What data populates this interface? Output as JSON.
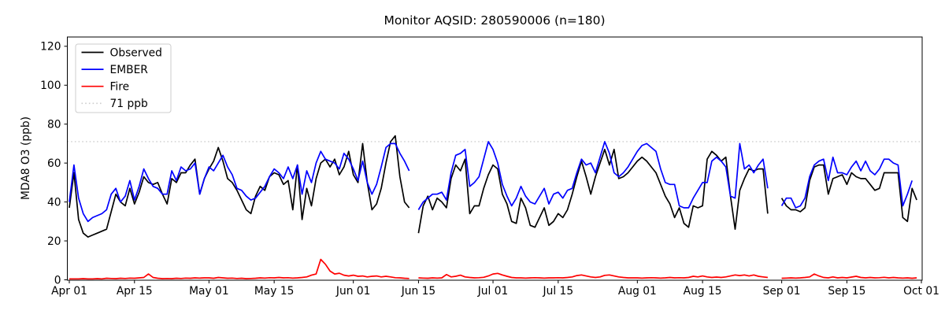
{
  "chart_data": {
    "type": "line",
    "title": "Monitor AQSID: 280590006 (n=180)",
    "xlabel": "",
    "ylabel": "MDA8 O3 (ppb)",
    "y_ticks": [
      0,
      20,
      40,
      60,
      80,
      100,
      120
    ],
    "ylim": [
      0,
      125
    ],
    "grid": false,
    "legend_position": "upper-left",
    "x_ticks": [
      {
        "label": "Apr 01",
        "day": 0
      },
      {
        "label": "Apr 15",
        "day": 14
      },
      {
        "label": "May 01",
        "day": 30
      },
      {
        "label": "May 15",
        "day": 44
      },
      {
        "label": "Jun 01",
        "day": 61
      },
      {
        "label": "Jun 15",
        "day": 75
      },
      {
        "label": "Jul 01",
        "day": 91
      },
      {
        "label": "Jul 15",
        "day": 105
      },
      {
        "label": "Aug 01",
        "day": 122
      },
      {
        "label": "Aug 15",
        "day": 136
      },
      {
        "label": "Sep 01",
        "day": 153
      },
      {
        "label": "Sep 15",
        "day": 167
      },
      {
        "label": "Oct 01",
        "day": 183
      }
    ],
    "threshold": {
      "value": 71,
      "label": "71 ppb",
      "color": "#cdcdcd",
      "style": "dotted"
    },
    "series": [
      {
        "name": "Observed",
        "color": "#000000",
        "values": [
          37,
          55,
          31,
          24,
          22,
          23,
          24,
          25,
          26,
          35,
          44,
          40,
          38,
          47,
          39,
          45,
          53,
          50,
          49,
          50,
          44,
          39,
          52,
          50,
          55,
          55,
          59,
          62,
          44,
          52,
          57,
          61,
          68,
          61,
          52,
          50,
          46,
          41,
          36,
          34,
          43,
          48,
          46,
          53,
          55,
          54,
          49,
          51,
          36,
          59,
          31,
          47,
          38,
          52,
          60,
          62,
          58,
          62,
          54,
          58,
          66,
          54,
          50,
          70,
          50,
          36,
          39,
          47,
          60,
          71,
          74,
          53,
          40,
          37,
          null,
          24,
          38,
          43,
          36,
          42,
          40,
          37,
          52,
          59,
          56,
          62,
          34,
          38,
          38,
          47,
          54,
          59,
          57,
          44,
          39,
          30,
          29,
          42,
          37,
          28,
          27,
          32,
          37,
          28,
          30,
          34,
          32,
          36,
          44,
          53,
          61,
          53,
          44,
          53,
          60,
          67,
          59,
          67,
          52,
          53,
          55,
          58,
          61,
          63,
          61,
          58,
          55,
          49,
          43,
          39,
          32,
          37,
          29,
          27,
          38,
          37,
          38,
          62,
          66,
          64,
          61,
          63,
          43,
          26,
          46,
          52,
          57,
          56,
          57,
          57,
          34,
          null,
          null,
          42,
          38,
          36,
          36,
          35,
          37,
          51,
          58,
          59,
          59,
          44,
          52,
          53,
          54,
          49,
          55,
          53,
          52,
          52,
          49,
          46,
          47,
          55,
          55,
          55,
          55,
          32,
          30,
          47,
          41
        ]
      },
      {
        "name": "EMBER",
        "color": "#0000ff",
        "values": [
          40,
          59,
          42,
          34,
          30,
          32,
          33,
          34,
          36,
          44,
          47,
          40,
          43,
          51,
          41,
          48,
          57,
          52,
          48,
          47,
          44,
          44,
          56,
          51,
          58,
          56,
          57,
          60,
          44,
          52,
          58,
          56,
          60,
          64,
          58,
          54,
          47,
          46,
          43,
          41,
          42,
          45,
          48,
          53,
          57,
          55,
          52,
          58,
          52,
          59,
          44,
          56,
          50,
          60,
          66,
          62,
          61,
          60,
          57,
          65,
          62,
          57,
          51,
          61,
          50,
          44,
          49,
          58,
          68,
          70,
          70,
          65,
          61,
          56,
          null,
          36,
          40,
          42,
          44,
          44,
          45,
          41,
          55,
          64,
          65,
          67,
          48,
          50,
          53,
          62,
          71,
          67,
          60,
          49,
          43,
          38,
          42,
          48,
          43,
          40,
          39,
          43,
          47,
          39,
          44,
          45,
          42,
          46,
          47,
          55,
          62,
          59,
          60,
          55,
          63,
          71,
          65,
          55,
          53,
          55,
          58,
          62,
          66,
          69,
          70,
          68,
          66,
          57,
          50,
          49,
          49,
          38,
          37,
          37,
          42,
          46,
          50,
          50,
          61,
          63,
          61,
          58,
          43,
          42,
          70,
          57,
          59,
          55,
          59,
          62,
          47,
          null,
          null,
          38,
          42,
          42,
          37,
          38,
          42,
          53,
          59,
          61,
          62,
          51,
          63,
          55,
          55,
          54,
          58,
          61,
          56,
          61,
          56,
          54,
          57,
          62,
          62,
          60,
          59,
          38,
          44,
          51,
          null
        ]
      },
      {
        "name": "Fire",
        "color": "#ff0000",
        "values": [
          0.5,
          0.5,
          0.5,
          0.6,
          0.5,
          0.5,
          0.6,
          0.5,
          0.8,
          0.7,
          0.6,
          0.8,
          0.7,
          0.9,
          0.8,
          1.0,
          1.2,
          3.0,
          1.2,
          0.8,
          0.6,
          0.7,
          0.6,
          0.8,
          0.7,
          0.9,
          0.8,
          1.0,
          0.9,
          1.0,
          1.0,
          0.8,
          1.2,
          1.0,
          0.8,
          0.9,
          0.7,
          0.8,
          0.6,
          0.7,
          0.8,
          1.0,
          0.9,
          1.1,
          1.0,
          1.2,
          1.0,
          1.1,
          0.9,
          1.0,
          1.2,
          1.5,
          2.4,
          3.0,
          10.5,
          8.0,
          4.5,
          3.0,
          3.4,
          2.4,
          2.0,
          2.4,
          1.8,
          2.0,
          1.5,
          1.8,
          2.0,
          1.5,
          1.8,
          1.5,
          1.1,
          1.0,
          0.8,
          0.7,
          null,
          1.0,
          0.9,
          0.8,
          1.0,
          0.9,
          1.0,
          2.7,
          1.5,
          1.8,
          2.4,
          1.5,
          1.2,
          1.0,
          1.1,
          1.3,
          2.0,
          3.0,
          3.3,
          2.5,
          1.8,
          1.2,
          1.0,
          1.0,
          0.9,
          1.0,
          1.1,
          1.0,
          0.9,
          1.0,
          1.0,
          1.1,
          1.0,
          1.2,
          1.5,
          2.2,
          2.5,
          2.0,
          1.5,
          1.2,
          1.5,
          2.3,
          2.5,
          2.0,
          1.5,
          1.2,
          1.0,
          1.0,
          1.0,
          0.9,
          1.0,
          1.1,
          1.0,
          0.9,
          1.0,
          1.2,
          1.0,
          1.1,
          1.0,
          1.2,
          1.8,
          1.5,
          2.0,
          1.5,
          1.2,
          1.4,
          1.2,
          1.5,
          2.0,
          2.5,
          2.2,
          2.5,
          2.0,
          2.5,
          1.8,
          1.5,
          1.2,
          null,
          null,
          0.8,
          0.9,
          1.0,
          0.9,
          1.0,
          1.2,
          1.5,
          3.0,
          2.0,
          1.2,
          1.0,
          1.5,
          1.0,
          1.2,
          1.0,
          1.4,
          1.8,
          1.2,
          1.0,
          1.2,
          1.0,
          1.1,
          1.3,
          1.0,
          1.2,
          1.0,
          0.9,
          1.0,
          0.8,
          1.0
        ]
      }
    ],
    "legend_entries": [
      "Observed",
      "EMBER",
      "Fire",
      "71 ppb"
    ],
    "x_start_label": "Apr 01",
    "x_end_label": "Oct 01",
    "n_label": "n=180"
  }
}
